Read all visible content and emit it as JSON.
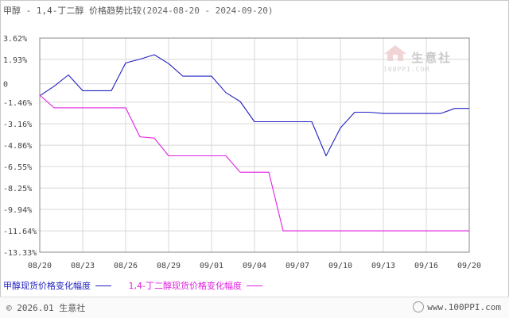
{
  "title": {
    "main": "甲醇 - 1,4-丁二醇 价格趋势比较",
    "range": "(2024-08-20 - 2024-09-20)"
  },
  "watermark": {
    "text": "生意社",
    "sub": "100PPI.COM"
  },
  "footer": {
    "copyright": "© 2026.01 生意社",
    "site": "www.100PPI.com"
  },
  "colors": {
    "series1": "#2020c0",
    "series2": "#e020e0",
    "grid": "#d8d8d8",
    "axis": "#888888"
  },
  "chart_data": {
    "type": "line",
    "ylim": [
      -13.33,
      3.62
    ],
    "y_ticks": [
      "3.62%",
      "1.93%",
      "0",
      "-1.46%",
      "-3.16%",
      "-4.86%",
      "-6.55%",
      "-8.25%",
      "-9.94%",
      "-11.64%",
      "-13.33%"
    ],
    "y_tick_values": [
      3.62,
      1.93,
      0,
      -1.46,
      -3.16,
      -4.86,
      -6.55,
      -8.25,
      -9.94,
      -11.64,
      -13.33
    ],
    "x_ticks": [
      "08/20",
      "08/23",
      "08/26",
      "08/29",
      "09/01",
      "09/04",
      "09/07",
      "09/10",
      "09/13",
      "09/16",
      "09/20"
    ],
    "x_tick_days": [
      0,
      3,
      6,
      9,
      12,
      15,
      18,
      21,
      24,
      27,
      30
    ],
    "x_days": [
      0,
      1,
      2,
      3,
      4,
      5,
      6,
      7,
      8,
      9,
      10,
      11,
      12,
      13,
      14,
      15,
      16,
      17,
      18,
      19,
      20,
      21,
      22,
      23,
      24,
      25,
      26,
      27,
      28,
      29,
      30
    ],
    "series": [
      {
        "name": "甲醇现货价格变化幅度",
        "values": [
          -0.95,
          -0.2,
          0.7,
          -0.55,
          -0.55,
          -0.55,
          1.65,
          1.95,
          2.3,
          1.6,
          0.6,
          0.6,
          0.6,
          -0.7,
          -1.4,
          -3.0,
          -3.0,
          -3.0,
          -3.0,
          -3.0,
          -5.7,
          -3.5,
          -2.25,
          -2.25,
          -2.35,
          -2.35,
          -2.35,
          -2.35,
          -2.35,
          -1.95,
          -1.95
        ]
      },
      {
        "name": "1,4-丁二醇现货价格变化幅度",
        "values": [
          -0.9,
          -1.9,
          -1.9,
          -1.9,
          -1.9,
          -1.9,
          -1.9,
          -4.2,
          -4.3,
          -5.7,
          -5.7,
          -5.7,
          -5.7,
          -5.7,
          -7.0,
          -7.0,
          -7.0,
          -11.64,
          -11.64,
          -11.64,
          -11.64,
          -11.64,
          -11.64,
          -11.64,
          -11.64,
          -11.64,
          -11.64,
          -11.64,
          -11.64,
          -11.64,
          -11.64
        ]
      }
    ]
  }
}
